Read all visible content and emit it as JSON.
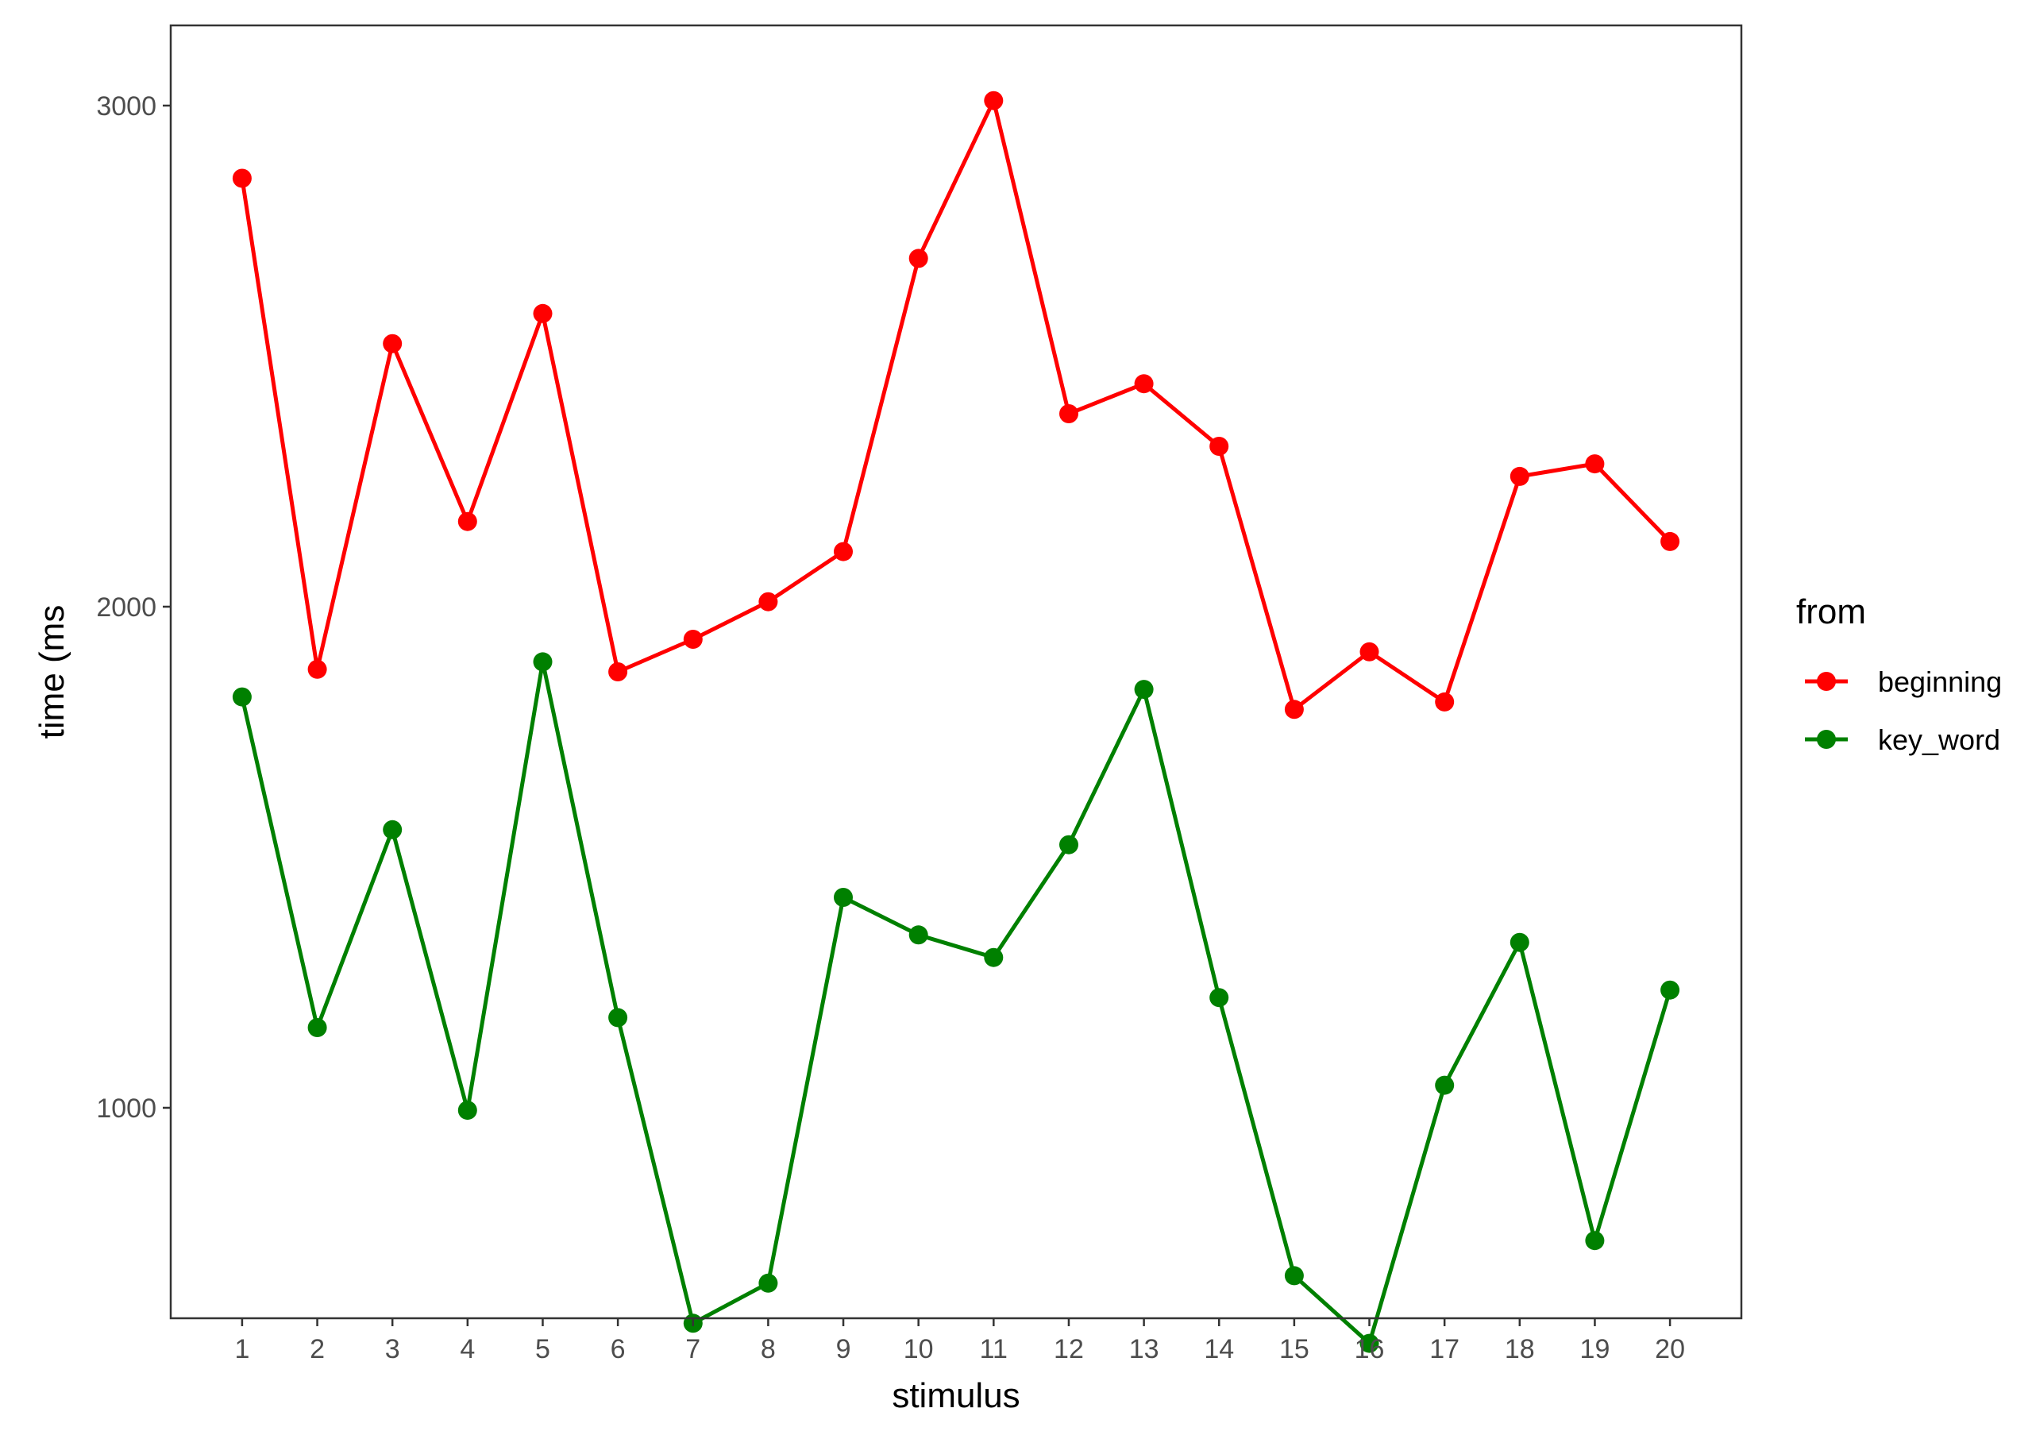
{
  "chart_data": {
    "type": "line",
    "xlabel": "stimulus",
    "ylabel": "time (ms",
    "x": [
      1,
      2,
      3,
      4,
      5,
      6,
      7,
      8,
      9,
      10,
      11,
      12,
      13,
      14,
      15,
      16,
      17,
      18,
      19,
      20
    ],
    "x_tick_labels": [
      "1",
      "2",
      "3",
      "4",
      "5",
      "6",
      "7",
      "8",
      "9",
      "10",
      "11",
      "12",
      "13",
      "14",
      "15",
      "16",
      "17",
      "18",
      "19",
      "20"
    ],
    "y_ticks": [
      1000,
      2000,
      3000
    ],
    "y_tick_labels": [
      "1000",
      "2000",
      "3000"
    ],
    "xlim": [
      0.05,
      20.95
    ],
    "ylim": [
      580,
      3160
    ],
    "grid": false,
    "legend": {
      "title": "from",
      "position": "right"
    },
    "series": [
      {
        "name": "beginning",
        "color": "#ff0000",
        "values": [
          2855,
          1875,
          2525,
          2170,
          2585,
          1870,
          1935,
          2010,
          2110,
          2695,
          3010,
          2385,
          2445,
          2320,
          1795,
          1910,
          1810,
          2260,
          2285,
          2130
        ]
      },
      {
        "name": "key_word",
        "color": "#008000",
        "values": [
          1820,
          1160,
          1555,
          995,
          1890,
          1180,
          570,
          650,
          1420,
          1345,
          1300,
          1525,
          1835,
          1220,
          665,
          530,
          1045,
          1330,
          735,
          1235
        ]
      }
    ]
  }
}
